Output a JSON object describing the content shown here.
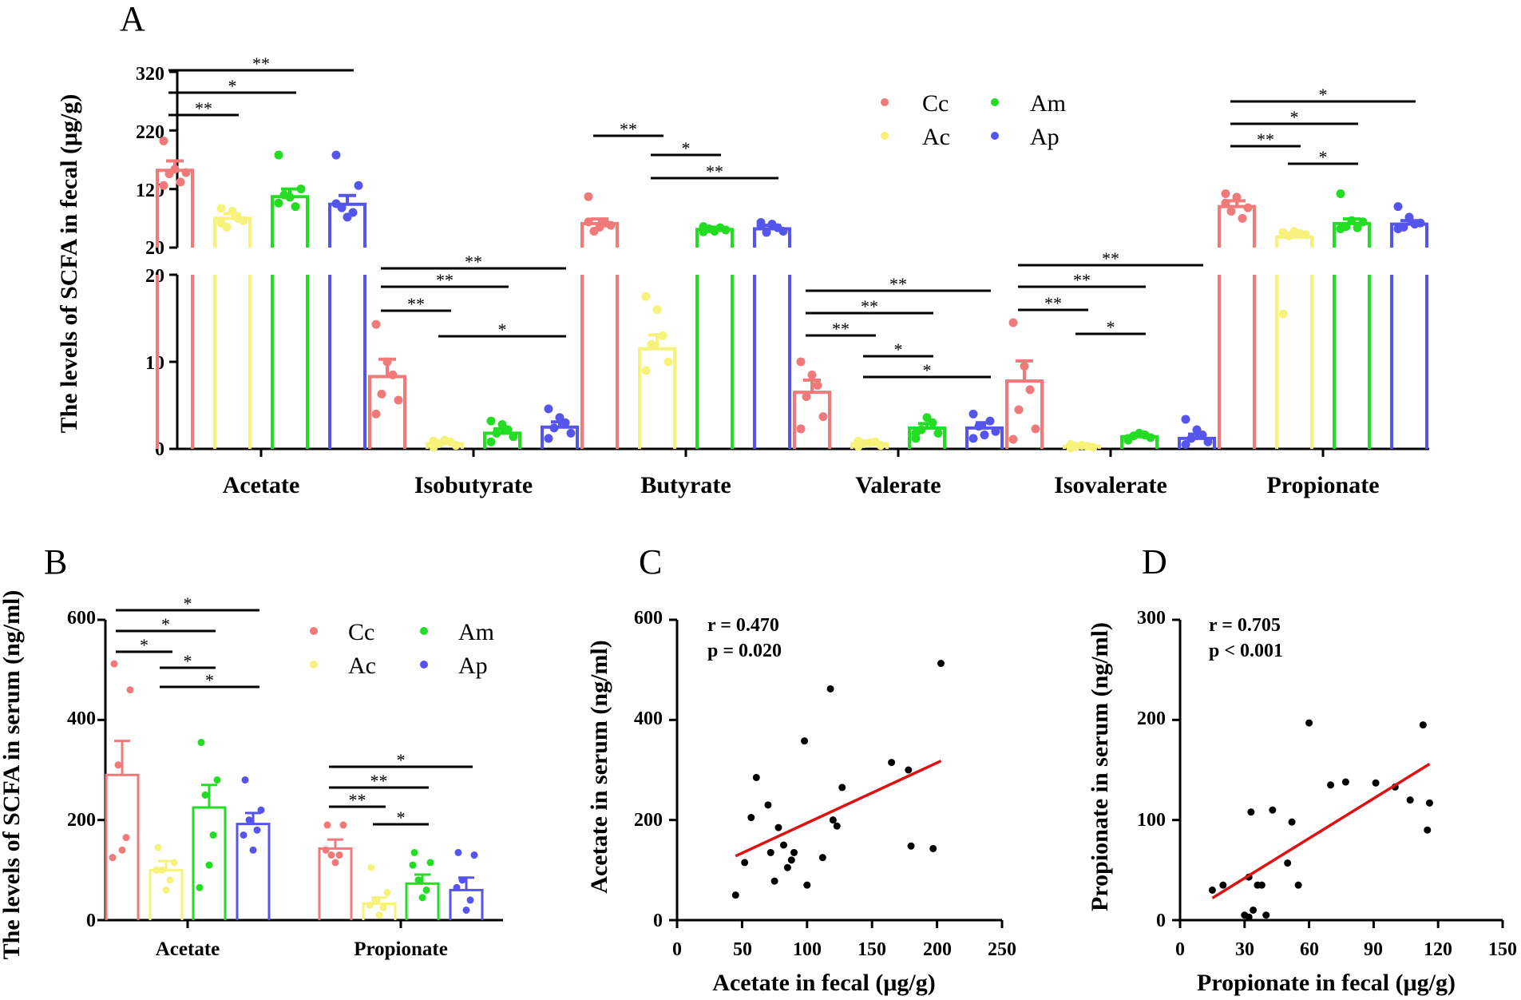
{
  "groups": [
    "Cc",
    "Ac",
    "Am",
    "Ap"
  ],
  "colors": {
    "Cc": "#f07a7a",
    "Ac": "#f7f27a",
    "Am": "#22dd22",
    "Ap": "#5555ee"
  },
  "chart_data": [
    {
      "panel": "A",
      "type": "bar",
      "ylabel": "The levels of SCFA in fecal (μg/g)",
      "axis_break": true,
      "lower_range": [
        0,
        20
      ],
      "upper_range": [
        20,
        320
      ],
      "lower_ticks": [
        "0",
        "10",
        "20"
      ],
      "upper_ticks": [
        "20",
        "120",
        "220",
        "320"
      ],
      "categories": [
        "Acetate",
        "Isobutyrate",
        "Butyrate",
        "Valerate",
        "Isovalerate",
        "Propionate"
      ],
      "legend": [
        "Cc",
        "Ac",
        "Am",
        "Ap"
      ],
      "series": [
        {
          "name": "Cc",
          "values": [
            152,
            8.3,
            61,
            6.5,
            7.8,
            90
          ]
        },
        {
          "name": "Ac",
          "values": [
            70,
            0.6,
            11.5,
            0.6,
            0.3,
            38
          ]
        },
        {
          "name": "Am",
          "values": [
            107,
            1.8,
            51,
            2.4,
            1.4,
            61
          ]
        },
        {
          "name": "Ap",
          "values": [
            94,
            2.5,
            52,
            2.4,
            1.2,
            60
          ]
        }
      ],
      "sem": [
        [
          16,
          2.0,
          8,
          1.4,
          2.3,
          10
        ],
        [
          8,
          0.3,
          1.6,
          0.3,
          0.2,
          3
        ],
        [
          13,
          0.5,
          4,
          0.5,
          0.3,
          8
        ],
        [
          15,
          0.6,
          6,
          0.6,
          0.5,
          6
        ]
      ],
      "points": [
        [
          [
            202,
            148,
            146,
            132,
            154,
            126
          ],
          [
            4,
            5.6,
            6.3,
            8.5,
            10,
            14.3
          ],
          [
            107,
            58,
            48,
            62,
            55,
            64
          ],
          [
            2.3,
            3.7,
            6,
            7.3,
            8.5,
            10
          ],
          [
            1.1,
            2.3,
            4.5,
            6.8,
            9.5,
            14.5
          ],
          [
            112,
            88,
            82,
            70,
            106,
            96
          ]
        ],
        [
          [
            87,
            66,
            55,
            70,
            82,
            62
          ],
          [
            0.2,
            0.4,
            0.6,
            0.8,
            1.0,
            0.9
          ],
          [
            9,
            10,
            12,
            13,
            16,
            17.5
          ],
          [
            0.3,
            0.4,
            0.6,
            0.8,
            0.7,
            0.9
          ],
          [
            0.1,
            0.2,
            0.3,
            0.3,
            0.4,
            0.5
          ],
          [
            46,
            42,
            40,
            44,
            48,
            15.5
          ]
        ],
        [
          [
            178,
            120,
            110,
            90,
            106,
            96
          ],
          [
            0.8,
            1.4,
            1.8,
            2.2,
            2.8,
            3.2
          ],
          [
            47,
            50,
            52,
            54,
            48,
            56
          ],
          [
            1.2,
            1.8,
            2.2,
            3.0,
            3.6,
            1.8
          ],
          [
            1.0,
            1.3,
            1.5,
            1.6,
            1.8,
            1.2
          ],
          [
            112,
            64,
            56,
            54,
            66,
            52
          ]
        ],
        [
          [
            178,
            126,
            88,
            80,
            72,
            95
          ],
          [
            1.2,
            1.8,
            2.4,
            3.0,
            3.6,
            4.6
          ],
          [
            58,
            48,
            46,
            54,
            60,
            63
          ],
          [
            1.2,
            2.0,
            2.6,
            3.2,
            1.6,
            4.0
          ],
          [
            0.5,
            0.8,
            1.2,
            1.6,
            2.2,
            3.4
          ],
          [
            90,
            62,
            55,
            60,
            72,
            52
          ]
        ]
      ],
      "significance": [
        {
          "category": "Acetate",
          "pairs": [
            [
              "Cc",
              "Ap",
              "**"
            ],
            [
              "Cc",
              "Am",
              "*"
            ],
            [
              "Cc",
              "Ac",
              "**"
            ]
          ]
        },
        {
          "category": "Isobutyrate",
          "pairs": [
            [
              "Cc",
              "Ap",
              "**"
            ],
            [
              "Cc",
              "Am",
              "**"
            ],
            [
              "Cc",
              "Ac",
              "**"
            ],
            [
              "Ac",
              "Ap",
              "*"
            ]
          ]
        },
        {
          "category": "Butyrate",
          "pairs": [
            [
              "Cc",
              "Ac",
              "**"
            ],
            [
              "Ac",
              "Am",
              "*"
            ],
            [
              "Ac",
              "Ap",
              "**"
            ]
          ]
        },
        {
          "category": "Valerate",
          "pairs": [
            [
              "Cc",
              "Ap",
              "**"
            ],
            [
              "Cc",
              "Am",
              "**"
            ],
            [
              "Cc",
              "Ac",
              "**"
            ],
            [
              "Ac",
              "Am",
              "*"
            ],
            [
              "Ac",
              "Ap",
              "*"
            ]
          ]
        },
        {
          "category": "Isovalerate",
          "pairs": [
            [
              "Cc",
              "Ap",
              "**"
            ],
            [
              "Cc",
              "Am",
              "**"
            ],
            [
              "Cc",
              "Ac",
              "**"
            ],
            [
              "Ac",
              "Am",
              "*"
            ]
          ]
        },
        {
          "category": "Propionate",
          "pairs": [
            [
              "Cc",
              "Ap",
              "*"
            ],
            [
              "Cc",
              "Am",
              "*"
            ],
            [
              "Cc",
              "Ac",
              "**"
            ],
            [
              "Ac",
              "Am",
              "*"
            ]
          ]
        }
      ]
    },
    {
      "panel": "B",
      "type": "bar",
      "ylabel": "The levels of SCFA in serum (ng/ml)",
      "ylim": [
        0,
        600
      ],
      "yticks": [
        "0",
        "200",
        "400",
        "600"
      ],
      "categories": [
        "Acetate",
        "Propionate"
      ],
      "legend": [
        "Cc",
        "Ac",
        "Am",
        "Ap"
      ],
      "series": [
        {
          "name": "Cc",
          "values": [
            290,
            143
          ]
        },
        {
          "name": "Ac",
          "values": [
            100,
            33
          ]
        },
        {
          "name": "Am",
          "values": [
            225,
            73
          ]
        },
        {
          "name": "Ap",
          "values": [
            192,
            60
          ]
        }
      ],
      "sem": [
        [
          68,
          18
        ],
        [
          18,
          12
        ],
        [
          45,
          18
        ],
        [
          22,
          25
        ]
      ],
      "points": [
        [
          [
            512,
            460,
            310,
            165,
            140,
            125
          ],
          [
            190,
            190,
            130,
            130,
            115,
            140
          ]
        ],
        [
          [
            145,
            115,
            100,
            80,
            60,
            100
          ],
          [
            105,
            55,
            40,
            25,
            10,
            30
          ]
        ],
        [
          [
            355,
            280,
            250,
            170,
            110,
            65
          ],
          [
            135,
            115,
            80,
            60,
            45,
            110
          ]
        ],
        [
          [
            280,
            220,
            200,
            180,
            140,
            170
          ],
          [
            135,
            130,
            80,
            40,
            20,
            65
          ]
        ]
      ],
      "significance": [
        {
          "category": "Acetate",
          "pairs": [
            [
              "Cc",
              "Ap",
              "*"
            ],
            [
              "Cc",
              "Am",
              "*"
            ],
            [
              "Cc",
              "Ac",
              "*"
            ],
            [
              "Ac",
              "Am",
              "*"
            ],
            [
              "Ac",
              "Ap",
              "*"
            ]
          ]
        },
        {
          "category": "Propionate",
          "pairs": [
            [
              "Cc",
              "Ap",
              "*"
            ],
            [
              "Cc",
              "Am",
              "**"
            ],
            [
              "Cc",
              "Ac",
              "**"
            ],
            [
              "Ac",
              "Am",
              "*"
            ]
          ]
        }
      ]
    },
    {
      "panel": "C",
      "type": "scatter",
      "xlabel": "Acetate in fecal (μg/g)",
      "ylabel": "Acetate in serum (ng/ml)",
      "xlim": [
        0,
        250
      ],
      "ylim": [
        0,
        600
      ],
      "xticks": [
        "0",
        "50",
        "100",
        "150",
        "200",
        "250"
      ],
      "yticks": [
        "0",
        "200",
        "400",
        "600"
      ],
      "r_text": "r = 0.470",
      "p_text": "p = 0.020",
      "fit_line": {
        "x": [
          45,
          203
        ],
        "y": [
          128,
          318
        ]
      },
      "points": [
        [
          45,
          50
        ],
        [
          52,
          115
        ],
        [
          57,
          205
        ],
        [
          61,
          285
        ],
        [
          70,
          230
        ],
        [
          72,
          135
        ],
        [
          75,
          78
        ],
        [
          78,
          185
        ],
        [
          82,
          150
        ],
        [
          85,
          105
        ],
        [
          88,
          120
        ],
        [
          90,
          135
        ],
        [
          98,
          358
        ],
        [
          100,
          70
        ],
        [
          112,
          125
        ],
        [
          118,
          462
        ],
        [
          120,
          200
        ],
        [
          123,
          188
        ],
        [
          127,
          265
        ],
        [
          165,
          315
        ],
        [
          178,
          300
        ],
        [
          180,
          148
        ],
        [
          197,
          143
        ],
        [
          203,
          513
        ]
      ]
    },
    {
      "panel": "D",
      "type": "scatter",
      "xlabel": "Propionate in fecal (μg/g)",
      "ylabel": "Propionate in serum (ng/ml)",
      "xlim": [
        0,
        150
      ],
      "ylim": [
        0,
        300
      ],
      "xticks": [
        "0",
        "30",
        "60",
        "90",
        "120",
        "150"
      ],
      "yticks": [
        "0",
        "100",
        "200",
        "300"
      ],
      "r_text": "r = 0.705",
      "p_text": "p < 0.001",
      "fit_line": {
        "x": [
          15,
          116
        ],
        "y": [
          22,
          156
        ]
      },
      "points": [
        [
          15,
          30
        ],
        [
          20,
          35
        ],
        [
          30,
          5
        ],
        [
          32,
          43
        ],
        [
          32,
          3
        ],
        [
          33,
          108
        ],
        [
          34,
          10
        ],
        [
          36,
          35
        ],
        [
          38,
          35
        ],
        [
          40,
          5
        ],
        [
          43,
          110
        ],
        [
          50,
          57
        ],
        [
          52,
          98
        ],
        [
          55,
          35
        ],
        [
          60,
          197
        ],
        [
          70,
          135
        ],
        [
          77,
          138
        ],
        [
          91,
          137
        ],
        [
          100,
          133
        ],
        [
          107,
          120
        ],
        [
          113,
          195
        ],
        [
          115,
          90
        ],
        [
          116,
          117
        ]
      ]
    }
  ]
}
